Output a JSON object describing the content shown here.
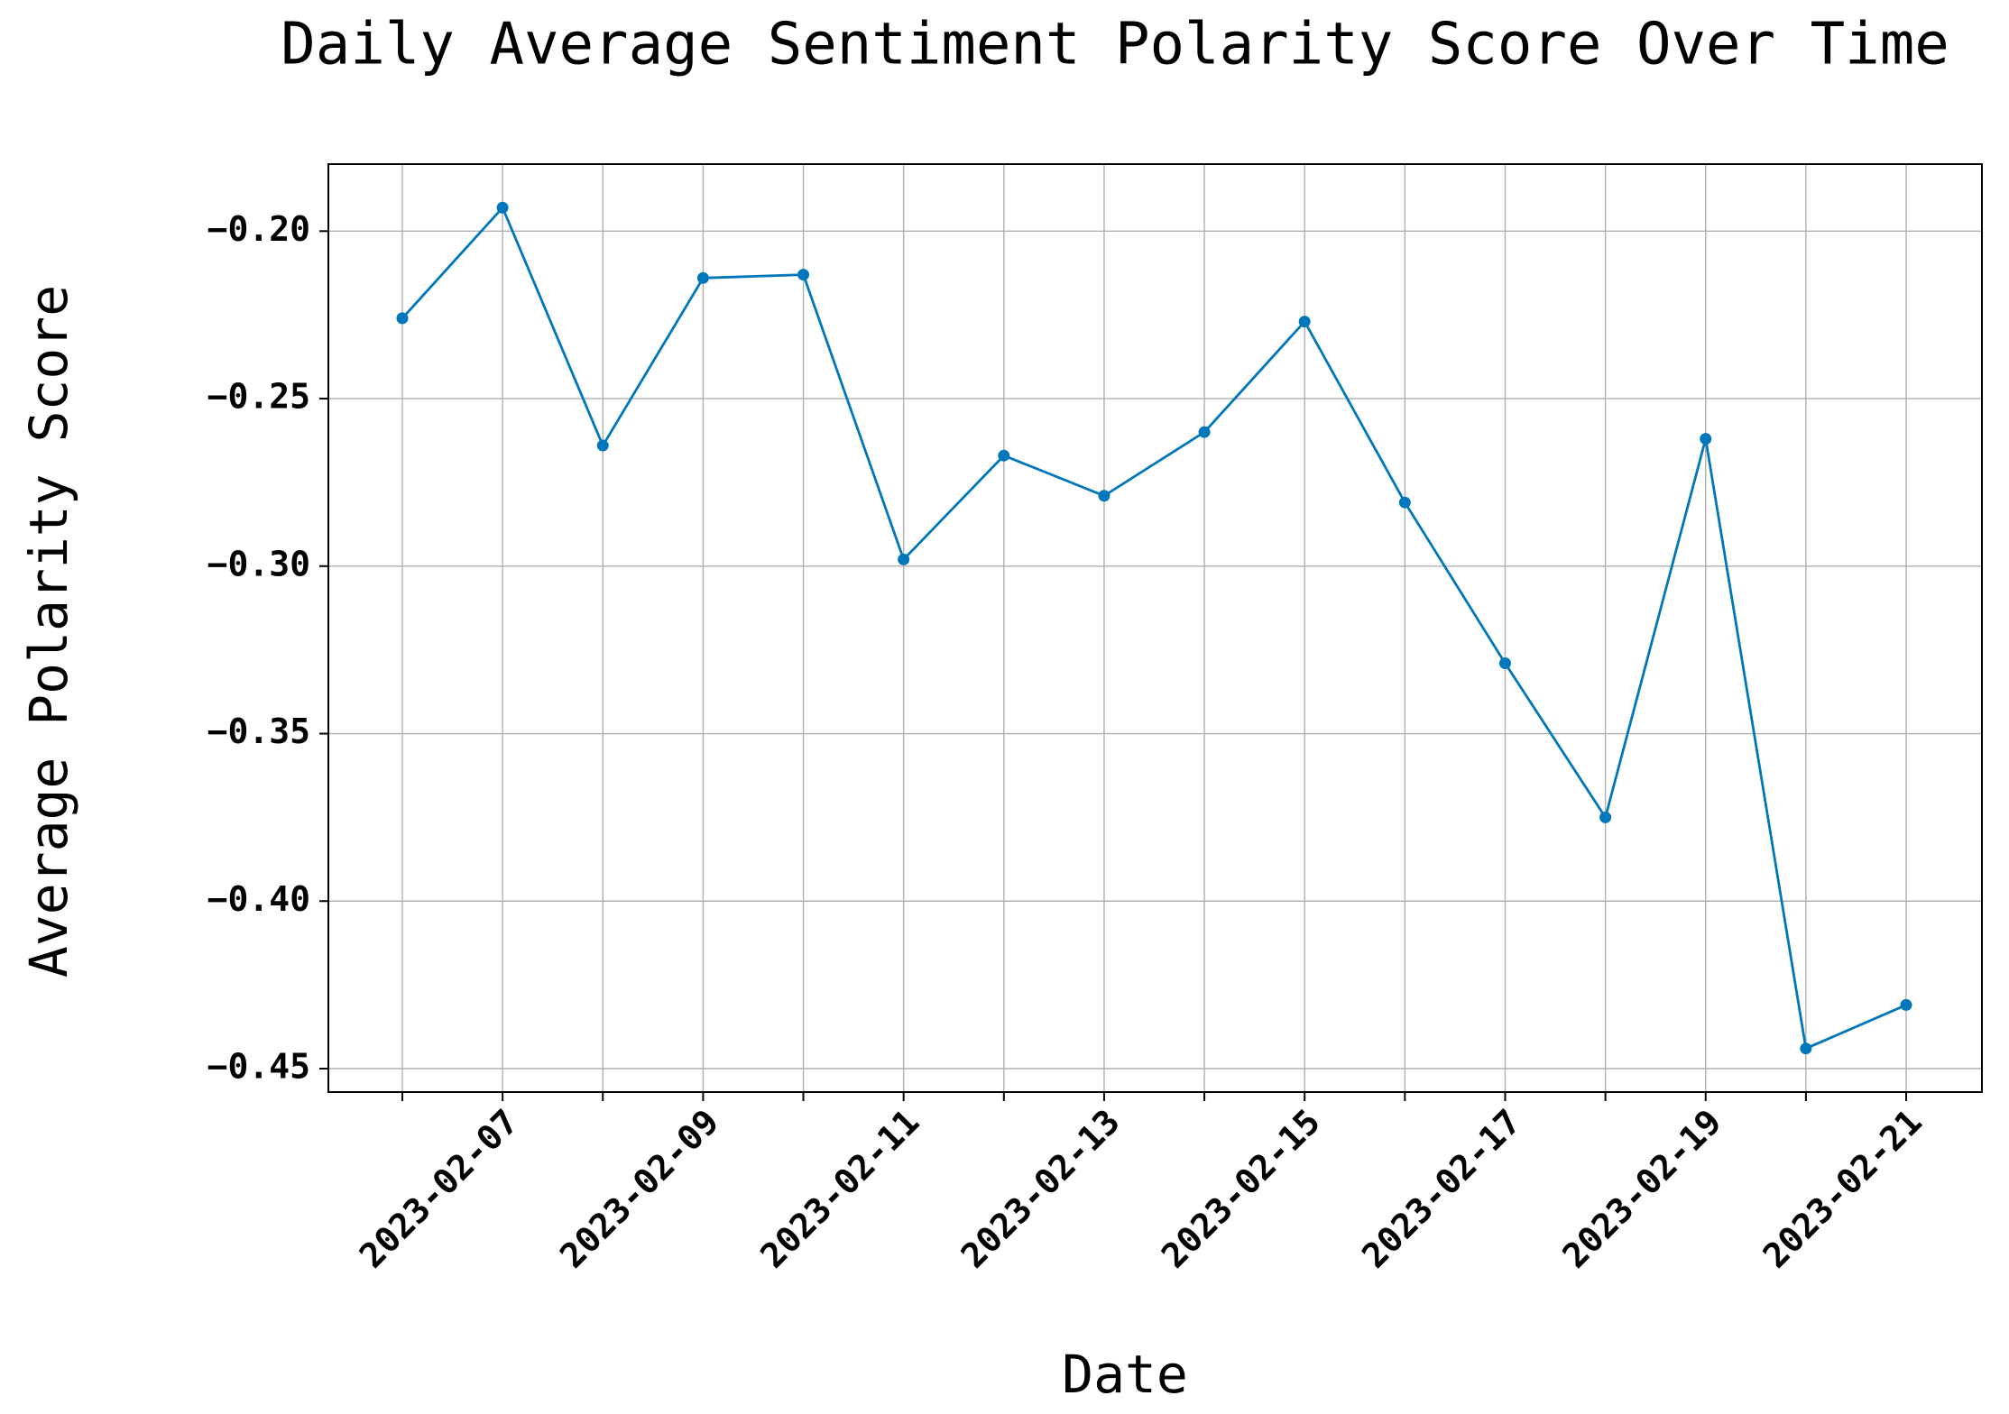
{
  "chart_data": {
    "type": "line",
    "title": "Daily Average Sentiment Polarity Score Over Time",
    "x_label": "Date",
    "y_label": "Average Polarity Score",
    "categories": [
      null,
      "2023-02-07",
      null,
      "2023-02-09",
      null,
      "2023-02-11",
      null,
      "2023-02-13",
      null,
      "2023-02-15",
      null,
      "2023-02-17",
      null,
      "2023-02-19",
      null,
      "2023-02-21"
    ],
    "series": [
      {
        "name": "Average Polarity Score",
        "color": "#0077bb",
        "values": [
          -0.226,
          -0.193,
          -0.264,
          -0.214,
          -0.213,
          -0.298,
          -0.267,
          -0.279,
          -0.26,
          -0.227,
          -0.281,
          -0.329,
          -0.375,
          -0.262,
          -0.444,
          -0.431
        ]
      }
    ],
    "ylim": [
      -0.457,
      -0.18
    ],
    "yticks": [
      {
        "value": -0.2,
        "label": "−0.20"
      },
      {
        "value": -0.25,
        "label": "−0.25"
      },
      {
        "value": -0.3,
        "label": "−0.30"
      },
      {
        "value": -0.35,
        "label": "−0.35"
      },
      {
        "value": -0.4,
        "label": "−0.40"
      },
      {
        "value": -0.45,
        "label": "−0.45"
      }
    ],
    "grid": true
  }
}
